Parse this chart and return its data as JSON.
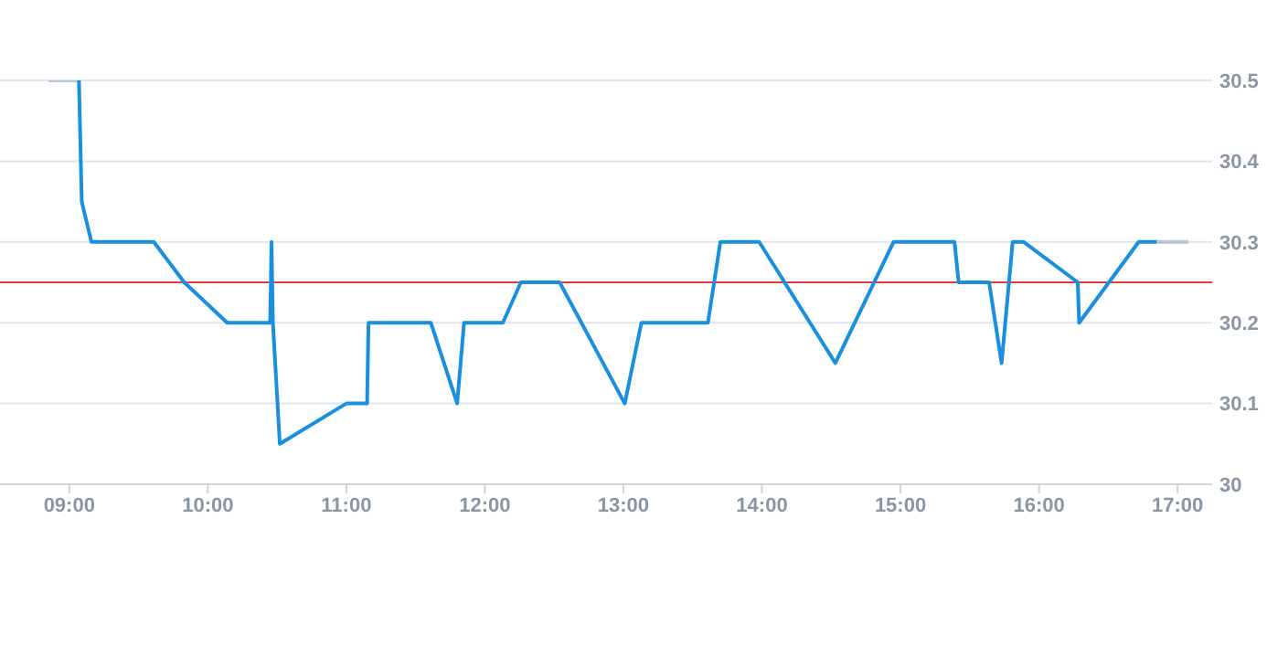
{
  "chart_data": {
    "type": "line",
    "xlim": [
      8.5,
      17.25
    ],
    "xticks": [
      {
        "value": 9,
        "label": "09:00"
      },
      {
        "value": 10,
        "label": "10:00"
      },
      {
        "value": 11,
        "label": "11:00"
      },
      {
        "value": 12,
        "label": "12:00"
      },
      {
        "value": 13,
        "label": "13:00"
      },
      {
        "value": 14,
        "label": "14:00"
      },
      {
        "value": 15,
        "label": "15:00"
      },
      {
        "value": 16,
        "label": "16:00"
      },
      {
        "value": 17,
        "label": "17:00"
      }
    ],
    "ylim": [
      30,
      30.5
    ],
    "yticks": [
      30,
      30.1,
      30.2,
      30.3,
      30.4,
      30.5
    ],
    "grid": "y",
    "marker": "none",
    "line_style": "solid",
    "ref_lines": [
      {
        "axis": "y",
        "value": 30.25,
        "color": "#e0393e"
      }
    ],
    "series": [
      {
        "color": "#b4c6d6",
        "x": [
          8.85,
          9.07,
          12,
          16.85,
          17.08
        ],
        "values": [
          30.5,
          30.5,
          null,
          30.3,
          30.3
        ]
      },
      {
        "color": "#1a8fdd",
        "x": [
          9.07,
          9.09,
          9.16,
          9.61,
          9.83,
          10.14,
          10.45,
          10.46,
          10.47,
          10.52,
          11.0,
          11.15,
          11.16,
          11.61,
          11.8,
          11.85,
          12.13,
          12.26,
          12.54,
          13.01,
          13.13,
          13.61,
          13.7,
          13.98,
          14.53,
          14.95,
          15.39,
          15.42,
          15.64,
          15.73,
          15.81,
          15.89,
          16.28,
          16.29,
          16.72,
          16.85
        ],
        "values": [
          30.5,
          30.35,
          30.3,
          30.3,
          30.25,
          30.2,
          30.2,
          30.3,
          30.2,
          30.05,
          30.1,
          30.1,
          30.2,
          30.2,
          30.1,
          30.2,
          30.2,
          30.25,
          30.25,
          30.1,
          30.2,
          30.2,
          30.3,
          30.3,
          30.15,
          30.3,
          30.3,
          30.25,
          30.25,
          30.15,
          30.3,
          30.3,
          30.25,
          30.2,
          30.3,
          30.3
        ]
      }
    ]
  }
}
